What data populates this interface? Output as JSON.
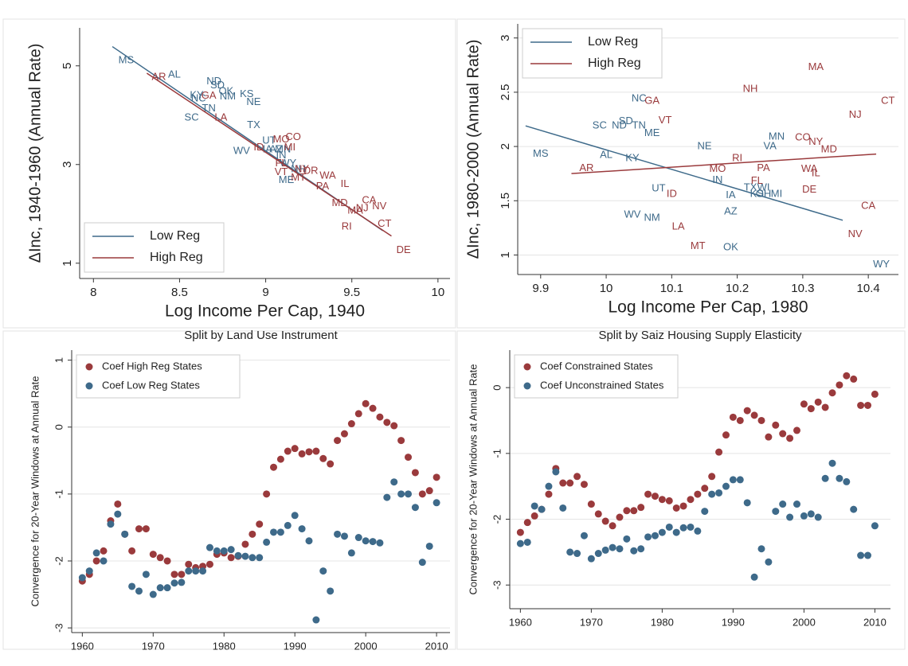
{
  "chart_data": [
    {
      "type": "scatter",
      "x_label": "Log Income Per Cap, 1940",
      "y_label": "ΔInc, 1940-1960 (Annual Rate)",
      "xlim": [
        7.92,
        10.07
      ],
      "ylim": [
        0.69,
        5.77
      ],
      "xticks": [
        8,
        8.5,
        9,
        9.5,
        10
      ],
      "yticks": [
        1,
        3,
        5
      ],
      "grid": false,
      "legend": "lower left",
      "series": [
        {
          "name": "Low Reg",
          "color": "#3e6a8a",
          "labels": [
            "MS",
            "AL",
            "ND",
            "SD",
            "KY",
            "NC",
            "OK",
            "NM",
            "KS",
            "NE",
            "TN",
            "SC",
            "TX",
            "UT",
            "WV",
            "IA",
            "AZ",
            "MN",
            "WY",
            "ME",
            "IN",
            "NH"
          ],
          "x": [
            8.19,
            8.47,
            8.7,
            8.72,
            8.6,
            8.61,
            8.77,
            8.78,
            8.89,
            8.93,
            8.67,
            8.57,
            8.93,
            9.02,
            8.86,
            9.01,
            9.06,
            9.1,
            9.13,
            9.12,
            9.09,
            9.19
          ],
          "y": [
            5.11,
            4.82,
            4.68,
            4.6,
            4.4,
            4.33,
            4.48,
            4.37,
            4.42,
            4.26,
            4.13,
            3.95,
            3.79,
            3.48,
            3.27,
            3.3,
            3.3,
            3.3,
            3.02,
            2.68,
            3.18,
            2.9
          ],
          "fit_x": [
            8.11,
            9.68
          ],
          "fit_y": [
            5.39,
            1.66
          ]
        },
        {
          "name": "High Reg",
          "color": "#9a3a3c",
          "labels": [
            "AR",
            "GA",
            "LA",
            "MO",
            "CO",
            "ID",
            "MI",
            "FL",
            "VT",
            "MT",
            "NY",
            "OR",
            "PA",
            "WA",
            "IL",
            "MD",
            "CA",
            "MA",
            "NJ",
            "NV",
            "RI",
            "CT",
            "DE"
          ],
          "x": [
            8.38,
            8.67,
            8.74,
            9.09,
            9.16,
            8.96,
            9.14,
            9.09,
            9.09,
            9.19,
            9.21,
            9.26,
            9.33,
            9.36,
            9.46,
            9.43,
            9.6,
            9.52,
            9.56,
            9.66,
            9.47,
            9.69,
            9.8
          ],
          "y": [
            4.77,
            4.39,
            3.95,
            3.5,
            3.55,
            3.34,
            3.34,
            3.02,
            2.84,
            2.73,
            2.9,
            2.87,
            2.55,
            2.77,
            2.6,
            2.21,
            2.27,
            2.06,
            2.11,
            2.15,
            1.74,
            1.79,
            1.26
          ],
          "fit_x": [
            8.31,
            9.73
          ],
          "fit_y": [
            4.85,
            1.55
          ]
        }
      ]
    },
    {
      "type": "scatter",
      "x_label": "Log Income Per Cap, 1980",
      "y_label": "ΔInc, 1980-2000 (Annual Rate)",
      "xlim": [
        9.865,
        10.446
      ],
      "ylim": [
        0.82,
        3.13
      ],
      "xticks": [
        9.9,
        10,
        10.1,
        10.2,
        10.3,
        10.4
      ],
      "yticks": [
        1,
        1.5,
        2,
        2.5,
        3
      ],
      "grid": true,
      "legend": "upper left",
      "series": [
        {
          "name": "Low Reg",
          "color": "#3e6a8a",
          "labels": [
            "MS",
            "AL",
            "KY",
            "NC",
            "SC",
            "ND",
            "SD",
            "TN",
            "ME",
            "NE",
            "MN",
            "VA",
            "UT",
            "IN",
            "IA",
            "TX",
            "WI",
            "KS",
            "OH",
            "MI",
            "AZ",
            "WV",
            "NM",
            "OK",
            "WY"
          ],
          "x": [
            9.9,
            10,
            10.04,
            10.05,
            9.99,
            10.02,
            10.03,
            10.05,
            10.07,
            10.15,
            10.26,
            10.25,
            10.08,
            10.17,
            10.19,
            10.22,
            10.24,
            10.23,
            10.24,
            10.26,
            10.19,
            10.04,
            10.07,
            10.19,
            10.42
          ],
          "y": [
            1.93,
            1.92,
            1.89,
            2.44,
            2.19,
            2.19,
            2.23,
            2.19,
            2.12,
            2,
            2.09,
            2,
            1.61,
            1.69,
            1.55,
            1.62,
            1.62,
            1.56,
            1.56,
            1.56,
            1.4,
            1.37,
            1.34,
            1.07,
            0.91
          ],
          "fit_x": [
            9.877,
            10.361
          ],
          "fit_y": [
            2.19,
            1.32
          ]
        },
        {
          "name": "High Reg",
          "color": "#9a3a3c",
          "labels": [
            "AR",
            "GA",
            "VT",
            "MA",
            "NH",
            "CT",
            "NJ",
            "CO",
            "NY",
            "MD",
            "RI",
            "MO",
            "PA",
            "WA",
            "IL",
            "FL",
            "DE",
            "ID",
            "LA",
            "MT",
            "CA",
            "NV"
          ],
          "x": [
            9.97,
            10.07,
            10.09,
            10.32,
            10.22,
            10.43,
            10.38,
            10.3,
            10.32,
            10.34,
            10.2,
            10.17,
            10.24,
            10.31,
            10.32,
            10.23,
            10.31,
            10.1,
            10.11,
            10.14,
            10.4,
            10.38
          ],
          "y": [
            1.8,
            2.42,
            2.24,
            2.73,
            2.53,
            2.42,
            2.29,
            2.08,
            2.04,
            1.97,
            1.89,
            1.79,
            1.8,
            1.79,
            1.75,
            1.68,
            1.6,
            1.56,
            1.26,
            1.08,
            1.45,
            1.19
          ],
          "fit_x": [
            9.947,
            10.412
          ],
          "fit_y": [
            1.75,
            1.93
          ]
        }
      ]
    },
    {
      "type": "scatter",
      "title": "Split by Land Use Instrument",
      "y_label": "Convergence for 20-Year Windows at Annual Rate",
      "xlim": [
        1958.5,
        2011.9
      ],
      "ylim": [
        -3.07,
        1.15
      ],
      "xticks": [
        1960,
        1970,
        1980,
        1990,
        2000,
        2010
      ],
      "yticks": [
        -3,
        -2,
        -1,
        0,
        1
      ],
      "grid": true,
      "legend": "upper left",
      "x": [
        1960,
        1961,
        1962,
        1963,
        1964,
        1965,
        1966,
        1967,
        1968,
        1969,
        1970,
        1971,
        1972,
        1973,
        1974,
        1975,
        1976,
        1977,
        1978,
        1979,
        1980,
        1981,
        1982,
        1983,
        1984,
        1985,
        1986,
        1987,
        1988,
        1989,
        1990,
        1991,
        1992,
        1993,
        1994,
        1995,
        1996,
        1997,
        1998,
        1999,
        2000,
        2001,
        2002,
        2003,
        2004,
        2005,
        2006,
        2007,
        2008,
        2009,
        2010
      ],
      "series": [
        {
          "name": "Coef High Reg States",
          "color": "#9a3a3c",
          "values": [
            -2.3,
            -2.2,
            -2,
            -1.85,
            -1.4,
            -1.15,
            -1.6,
            -1.85,
            -1.52,
            -1.52,
            -1.9,
            -1.95,
            -2,
            -2.2,
            -2.2,
            -2.05,
            -2.1,
            -2.08,
            -2.05,
            -1.9,
            -1.88,
            -1.95,
            -1.93,
            -1.75,
            -1.6,
            -1.45,
            -1,
            -0.6,
            -0.48,
            -0.36,
            -0.32,
            -0.4,
            -0.37,
            -0.36,
            -0.47,
            -0.55,
            -0.2,
            -0.1,
            0.05,
            0.2,
            0.35,
            0.28,
            0.15,
            0.07,
            0.02,
            -0.2,
            -0.45,
            -0.68,
            -1,
            -0.95,
            -0.75
          ]
        },
        {
          "name": "Coef Low Reg States",
          "color": "#3e6a8a",
          "values": [
            -2.25,
            -2.15,
            -1.88,
            -2,
            -1.45,
            -1.3,
            -1.6,
            -2.38,
            -2.45,
            -2.2,
            -2.5,
            -2.4,
            -2.4,
            -2.33,
            -2.32,
            -2.15,
            -2.15,
            -2.15,
            -1.8,
            -1.85,
            -1.85,
            -1.83,
            -1.92,
            -1.93,
            -1.95,
            -1.95,
            -1.72,
            -1.57,
            -1.57,
            -1.47,
            -1.32,
            -1.52,
            -1.7,
            -2.88,
            -2.15,
            -2.45,
            -1.6,
            -1.63,
            -1.88,
            -1.65,
            -1.7,
            -1.71,
            -1.73,
            -1.05,
            -0.82,
            -1,
            -1,
            -1.2,
            -2.02,
            -1.78,
            -1.13
          ]
        }
      ]
    },
    {
      "type": "scatter",
      "title": "Split by Saiz Housing Supply Elasticity",
      "y_label": "Convergence for 20-Year Windows at Annual Rate",
      "xlim": [
        1958.5,
        2012.2
      ],
      "ylim": [
        -3.36,
        0.57
      ],
      "xticks": [
        1960,
        1970,
        1980,
        1990,
        2000,
        2010
      ],
      "yticks": [
        -3,
        -2,
        -1,
        0
      ],
      "grid": true,
      "legend": "upper left",
      "x": [
        1960,
        1961,
        1962,
        1963,
        1964,
        1965,
        1966,
        1967,
        1968,
        1969,
        1970,
        1971,
        1972,
        1973,
        1974,
        1975,
        1976,
        1977,
        1978,
        1979,
        1980,
        1981,
        1982,
        1983,
        1984,
        1985,
        1986,
        1987,
        1988,
        1989,
        1990,
        1991,
        1992,
        1993,
        1994,
        1995,
        1996,
        1997,
        1998,
        1999,
        2000,
        2001,
        2002,
        2003,
        2004,
        2005,
        2006,
        2007,
        2008,
        2009,
        2010
      ],
      "series": [
        {
          "name": "Coef Constrained States",
          "color": "#9a3a3c",
          "values": [
            -2.2,
            -2.05,
            -1.95,
            -1.85,
            -1.62,
            -1.23,
            -1.45,
            -1.45,
            -1.35,
            -1.47,
            -1.77,
            -1.92,
            -2.03,
            -2.1,
            -1.97,
            -1.87,
            -1.87,
            -1.82,
            -1.62,
            -1.65,
            -1.7,
            -1.72,
            -1.83,
            -1.8,
            -1.7,
            -1.62,
            -1.53,
            -1.35,
            -0.98,
            -0.72,
            -0.45,
            -0.5,
            -0.35,
            -0.42,
            -0.5,
            -0.75,
            -0.57,
            -0.7,
            -0.77,
            -0.65,
            -0.25,
            -0.32,
            -0.22,
            -0.3,
            -0.08,
            0.04,
            0.18,
            0.13,
            -0.27,
            -0.27,
            -0.1
          ]
        },
        {
          "name": "Coef Unconstrained States",
          "color": "#3e6a8a",
          "values": [
            -2.37,
            -2.35,
            -1.8,
            -1.85,
            -1.5,
            -1.28,
            -1.83,
            -2.5,
            -2.52,
            -2.25,
            -2.6,
            -2.52,
            -2.47,
            -2.43,
            -2.45,
            -2.3,
            -2.48,
            -2.45,
            -2.27,
            -2.25,
            -2.2,
            -2.12,
            -2.2,
            -2.13,
            -2.12,
            -2.18,
            -1.88,
            -1.62,
            -1.6,
            -1.5,
            -1.4,
            -1.4,
            -1.75,
            -2.88,
            -2.45,
            -2.65,
            -1.88,
            -1.77,
            -1.97,
            -1.77,
            -1.95,
            -1.92,
            -1.97,
            -1.38,
            -1.15,
            -1.38,
            -1.43,
            -1.85,
            -2.55,
            -2.55,
            -2.1
          ]
        }
      ]
    }
  ]
}
